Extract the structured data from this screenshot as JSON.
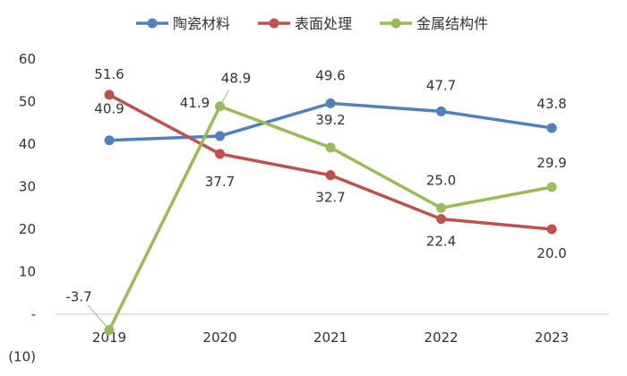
{
  "chart_data": {
    "type": "line",
    "title": "",
    "xlabel": "",
    "ylabel": "",
    "categories": [
      "2019",
      "2020",
      "2021",
      "2022",
      "2023"
    ],
    "y_ticks": [
      {
        "value": -10,
        "label": "(10)"
      },
      {
        "value": 0,
        "label": "-"
      },
      {
        "value": 10,
        "label": "10"
      },
      {
        "value": 20,
        "label": "20"
      },
      {
        "value": 30,
        "label": "30"
      },
      {
        "value": 40,
        "label": "40"
      },
      {
        "value": 50,
        "label": "50"
      },
      {
        "value": 60,
        "label": "60"
      }
    ],
    "ylim": [
      -10,
      60
    ],
    "grid": false,
    "legend_position": "top",
    "series": [
      {
        "name": "陶瓷材料",
        "color": "#4F81BD",
        "values": [
          40.9,
          41.9,
          49.6,
          47.7,
          43.8
        ],
        "labels": [
          "40.9",
          "41.9",
          "49.6",
          "47.7",
          "43.8"
        ]
      },
      {
        "name": "表面处理",
        "color": "#C0504D",
        "values": [
          51.6,
          37.7,
          32.7,
          22.4,
          20.0
        ],
        "labels": [
          "51.6",
          "37.7",
          "32.7",
          "22.4",
          "20.0"
        ]
      },
      {
        "name": "金属结构件",
        "color": "#9BBB59",
        "values": [
          -3.7,
          48.9,
          39.2,
          25.0,
          29.9
        ],
        "labels": [
          "-3.7",
          "48.9",
          "39.2",
          "25.0",
          "29.9"
        ]
      }
    ]
  }
}
